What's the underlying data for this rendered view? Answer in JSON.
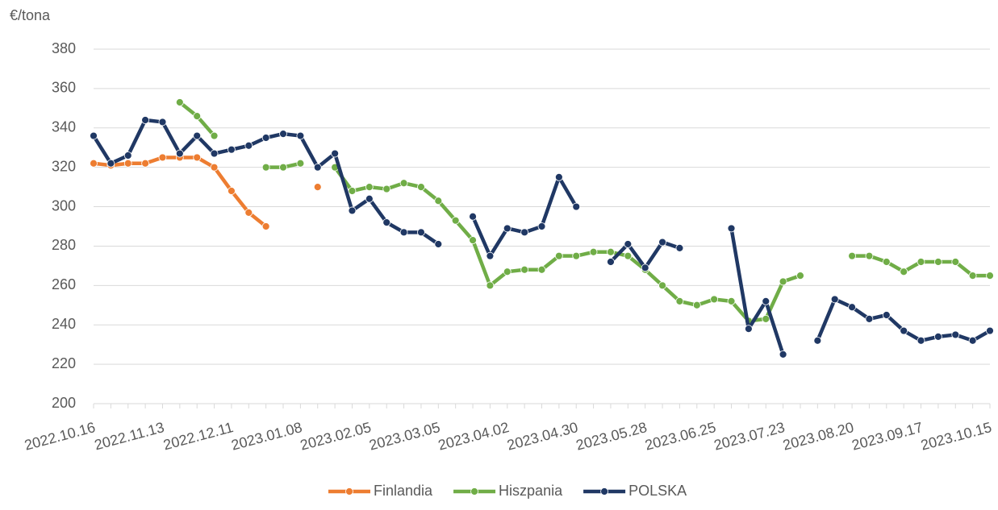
{
  "chart_data": {
    "type": "line",
    "y_label": "€/tona",
    "categories": [
      "2022.10.16",
      null,
      null,
      null,
      "2022.11.13",
      null,
      null,
      null,
      "2022.12.11",
      null,
      null,
      null,
      "2023.01.08",
      null,
      null,
      null,
      "2023.02.05",
      null,
      null,
      null,
      "2023.03.05",
      null,
      null,
      null,
      "2023.04.02",
      null,
      null,
      null,
      "2023.04.30",
      null,
      null,
      null,
      "2023.05.28",
      null,
      null,
      null,
      "2023.06.25",
      null,
      null,
      null,
      "2023.07.23",
      null,
      null,
      null,
      "2023.08.20",
      null,
      null,
      null,
      "2023.09.17",
      null,
      null,
      null,
      "2023.10.15"
    ],
    "series": [
      {
        "name": "Finlandia",
        "color": "#ed7d31",
        "values": [
          322,
          321,
          322,
          322,
          325,
          325,
          325,
          320,
          308,
          297,
          290,
          null,
          null,
          310,
          null,
          null,
          null,
          null,
          null,
          null,
          null,
          null,
          null,
          null,
          null,
          null,
          null,
          null,
          null,
          null,
          null,
          null,
          null,
          null,
          null,
          null,
          null,
          null,
          null,
          null,
          null,
          null,
          null,
          null,
          null,
          null,
          null,
          null,
          null,
          null,
          null,
          null,
          null
        ]
      },
      {
        "name": "Hiszpania",
        "color": "#70ad47",
        "values": [
          null,
          null,
          null,
          null,
          null,
          353,
          346,
          336,
          null,
          null,
          320,
          320,
          322,
          null,
          320,
          308,
          310,
          309,
          312,
          310,
          303,
          293,
          283,
          260,
          267,
          268,
          268,
          275,
          275,
          277,
          277,
          275,
          268,
          260,
          252,
          250,
          253,
          252,
          242,
          243,
          262,
          265,
          null,
          null,
          275,
          275,
          272,
          267,
          272,
          272,
          272,
          265,
          265
        ]
      },
      {
        "name": "POLSKA",
        "color": "#203864",
        "values": [
          336,
          322,
          326,
          344,
          343,
          327,
          336,
          327,
          329,
          331,
          335,
          337,
          336,
          320,
          327,
          298,
          304,
          292,
          287,
          287,
          281,
          null,
          295,
          275,
          289,
          287,
          290,
          315,
          300,
          null,
          272,
          281,
          269,
          282,
          279,
          null,
          null,
          289,
          238,
          252,
          225,
          null,
          232,
          253,
          249,
          243,
          245,
          237,
          232,
          234,
          235,
          232,
          237
        ]
      }
    ],
    "ylim": [
      200,
      380
    ],
    "yticks": [
      200,
      220,
      240,
      260,
      280,
      300,
      320,
      340,
      360,
      380
    ],
    "grid": true
  }
}
